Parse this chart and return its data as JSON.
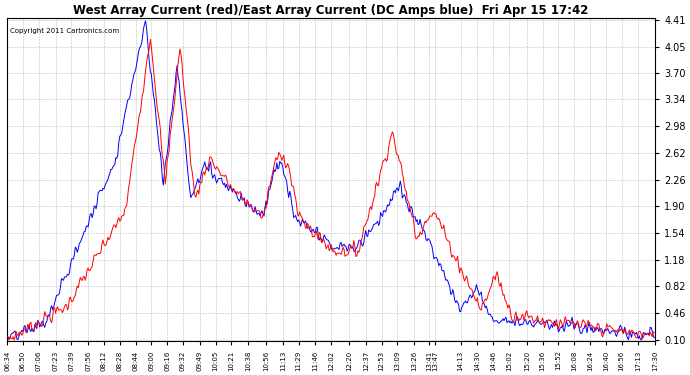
{
  "title": "West Array Current (red)/East Array Current (DC Amps blue)  Fri Apr 15 17:42",
  "copyright": "Copyright 2011 Cartronics.com",
  "ylabel_right_ticks": [
    0.1,
    0.46,
    0.82,
    1.18,
    1.54,
    1.9,
    2.26,
    2.62,
    2.98,
    3.34,
    3.7,
    4.05,
    4.41
  ],
  "ymin": 0.1,
  "ymax": 4.41,
  "background_color": "#ffffff",
  "plot_bg_color": "#ffffff",
  "grid_color": "#bbbbbb",
  "line_color_red": "#ff0000",
  "line_color_blue": "#0000ff",
  "x_labels": [
    "06:34",
    "06:50",
    "07:06",
    "07:23",
    "07:39",
    "07:56",
    "08:12",
    "08:28",
    "08:44",
    "09:00",
    "09:16",
    "09:32",
    "09:49",
    "10:05",
    "10:21",
    "10:38",
    "10:56",
    "11:13",
    "11:29",
    "11:46",
    "12:02",
    "12:20",
    "12:37",
    "12:53",
    "13:09",
    "13:26",
    "13:41",
    "13:47",
    "14:13",
    "14:30",
    "14:46",
    "15:02",
    "15:20",
    "15:36",
    "15:52",
    "16:08",
    "16:24",
    "16:40",
    "16:56",
    "17:13",
    "17:30"
  ]
}
